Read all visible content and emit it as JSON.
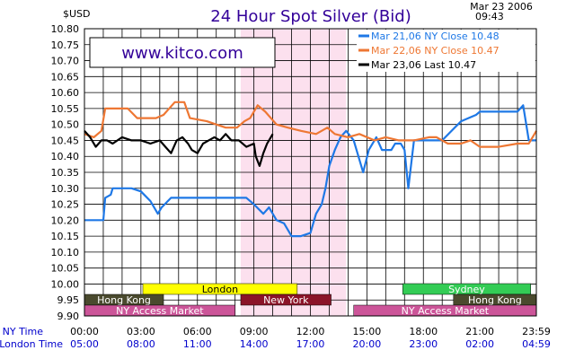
{
  "chart_data": {
    "type": "line",
    "title": "24 Hour Spot Silver (Bid)",
    "date": "Mar 23 2006",
    "time": "09:43",
    "ylabel": "$USD",
    "watermark": "www.kitco.com",
    "ylim": [
      9.9,
      10.8
    ],
    "y_ticks": [
      "10.80",
      "10.75",
      "10.70",
      "10.65",
      "10.60",
      "10.55",
      "10.50",
      "10.45",
      "10.40",
      "10.35",
      "10.30",
      "10.25",
      "10.20",
      "10.15",
      "10.10",
      "10.05",
      "10.00",
      "9.95",
      "9.90"
    ],
    "x_range_hours": [
      0,
      24
    ],
    "x_row_label_ny": "NY Time",
    "x_row_label_london": "London Time",
    "x_ticks": [
      {
        "h": 0,
        "ny": "00:00",
        "london": "05:00"
      },
      {
        "h": 3,
        "ny": "03:00",
        "london": "08:00"
      },
      {
        "h": 6,
        "ny": "06:00",
        "london": "11:00"
      },
      {
        "h": 9,
        "ny": "09:00",
        "london": "14:00"
      },
      {
        "h": 12,
        "ny": "12:00",
        "london": "17:00"
      },
      {
        "h": 15,
        "ny": "15:00",
        "london": "20:00"
      },
      {
        "h": 18,
        "ny": "18:00",
        "london": "23:00"
      },
      {
        "h": 21,
        "ny": "21:00",
        "london": "02:00"
      },
      {
        "h": 24,
        "ny": "23:59",
        "london": "04:59"
      }
    ],
    "highlight_hours": [
      8.3,
      13.9
    ],
    "series": [
      {
        "name": "Mar 21,06",
        "closing_label": "NY Close",
        "last_value": "10.48",
        "color": "#1e78e6",
        "points": [
          [
            0,
            10.2
          ],
          [
            1,
            10.2
          ],
          [
            1.1,
            10.27
          ],
          [
            1.4,
            10.28
          ],
          [
            1.5,
            10.3
          ],
          [
            2.5,
            10.3
          ],
          [
            3,
            10.29
          ],
          [
            3.5,
            10.26
          ],
          [
            3.9,
            10.22
          ],
          [
            4.1,
            10.24
          ],
          [
            4.6,
            10.27
          ],
          [
            5.5,
            10.27
          ],
          [
            6,
            10.27
          ],
          [
            7,
            10.27
          ],
          [
            8,
            10.27
          ],
          [
            8.6,
            10.27
          ],
          [
            9,
            10.25
          ],
          [
            9.5,
            10.22
          ],
          [
            9.8,
            10.24
          ],
          [
            10.2,
            10.2
          ],
          [
            10.6,
            10.19
          ],
          [
            11,
            10.15
          ],
          [
            11.5,
            10.15
          ],
          [
            12,
            10.16
          ],
          [
            12.3,
            10.22
          ],
          [
            12.6,
            10.25
          ],
          [
            12.8,
            10.3
          ],
          [
            13,
            10.37
          ],
          [
            13.3,
            10.42
          ],
          [
            13.6,
            10.46
          ],
          [
            13.9,
            10.48
          ],
          [
            14.3,
            10.45
          ],
          [
            14.8,
            10.35
          ],
          [
            15.1,
            10.42
          ],
          [
            15.5,
            10.46
          ],
          [
            15.8,
            10.42
          ],
          [
            16.3,
            10.42
          ],
          [
            16.5,
            10.44
          ],
          [
            16.8,
            10.44
          ],
          [
            17.0,
            10.42
          ],
          [
            17.2,
            10.3
          ],
          [
            17.5,
            10.45
          ],
          [
            18,
            10.45
          ],
          [
            19,
            10.45
          ],
          [
            20,
            10.51
          ],
          [
            20.8,
            10.53
          ],
          [
            21,
            10.54
          ],
          [
            22,
            10.54
          ],
          [
            23,
            10.54
          ],
          [
            23.3,
            10.56
          ],
          [
            23.6,
            10.45
          ],
          [
            24,
            10.45
          ]
        ]
      },
      {
        "name": "Mar 22,06",
        "closing_label": "NY Close",
        "last_value": "10.47",
        "color": "#ee7733",
        "points": [
          [
            0,
            10.47
          ],
          [
            0.5,
            10.46
          ],
          [
            0.9,
            10.48
          ],
          [
            1.1,
            10.55
          ],
          [
            2.3,
            10.55
          ],
          [
            2.8,
            10.52
          ],
          [
            3.8,
            10.52
          ],
          [
            4.2,
            10.53
          ],
          [
            4.8,
            10.57
          ],
          [
            5.3,
            10.57
          ],
          [
            5.6,
            10.52
          ],
          [
            6.5,
            10.51
          ],
          [
            7,
            10.5
          ],
          [
            7.5,
            10.49
          ],
          [
            8.1,
            10.49
          ],
          [
            8.5,
            10.51
          ],
          [
            8.8,
            10.52
          ],
          [
            9.2,
            10.56
          ],
          [
            9.6,
            10.54
          ],
          [
            10.2,
            10.5
          ],
          [
            10.8,
            10.49
          ],
          [
            11.5,
            10.48
          ],
          [
            12.3,
            10.47
          ],
          [
            12.9,
            10.49
          ],
          [
            13.3,
            10.47
          ],
          [
            14,
            10.46
          ],
          [
            14.6,
            10.47
          ],
          [
            15.4,
            10.45
          ],
          [
            16,
            10.46
          ],
          [
            16.7,
            10.45
          ],
          [
            17.5,
            10.45
          ],
          [
            18.3,
            10.46
          ],
          [
            18.7,
            10.46
          ],
          [
            19.3,
            10.44
          ],
          [
            20,
            10.44
          ],
          [
            20.5,
            10.45
          ],
          [
            21,
            10.43
          ],
          [
            22,
            10.43
          ],
          [
            23,
            10.44
          ],
          [
            23.6,
            10.44
          ],
          [
            24,
            10.48
          ]
        ]
      },
      {
        "name": "Mar 23,06",
        "closing_label": "Last",
        "last_value": "10.47",
        "color": "#000000",
        "points": [
          [
            0,
            10.48
          ],
          [
            0.3,
            10.46
          ],
          [
            0.6,
            10.43
          ],
          [
            0.9,
            10.45
          ],
          [
            1.2,
            10.45
          ],
          [
            1.5,
            10.44
          ],
          [
            2.0,
            10.46
          ],
          [
            2.5,
            10.45
          ],
          [
            3.0,
            10.45
          ],
          [
            3.5,
            10.44
          ],
          [
            4.0,
            10.45
          ],
          [
            4.3,
            10.43
          ],
          [
            4.6,
            10.41
          ],
          [
            4.9,
            10.45
          ],
          [
            5.2,
            10.46
          ],
          [
            5.5,
            10.44
          ],
          [
            5.7,
            10.42
          ],
          [
            6.0,
            10.41
          ],
          [
            6.3,
            10.44
          ],
          [
            6.6,
            10.45
          ],
          [
            6.9,
            10.46
          ],
          [
            7.2,
            10.45
          ],
          [
            7.5,
            10.47
          ],
          [
            7.8,
            10.45
          ],
          [
            8.2,
            10.45
          ],
          [
            8.6,
            10.43
          ],
          [
            9.0,
            10.44
          ],
          [
            9.1,
            10.4
          ],
          [
            9.3,
            10.37
          ],
          [
            9.5,
            10.41
          ],
          [
            9.7,
            10.44
          ],
          [
            9.9,
            10.46
          ],
          [
            10.0,
            10.47
          ]
        ]
      }
    ],
    "market_rows": [
      {
        "row": "upper",
        "markets": [
          {
            "name": "London",
            "start_h": 3.1,
            "end_h": 11.3,
            "color": "#ffff00",
            "text_color": "#000000"
          },
          {
            "name": "Sydney",
            "start_h": 16.9,
            "end_h": 23.7,
            "color": "#33cc55",
            "text_color": "#ffffff"
          }
        ]
      },
      {
        "row": "middle",
        "markets": [
          {
            "name": "Hong Kong",
            "start_h": 0,
            "end_h": 4.2,
            "color": "#4a4a2e",
            "text_color": "#ffffff"
          },
          {
            "name": "New York",
            "start_h": 8.3,
            "end_h": 13.1,
            "color": "#8b1428",
            "text_color": "#ffffff"
          },
          {
            "name": "Hong Kong",
            "start_h": 19.6,
            "end_h": 24,
            "color": "#4a4a2e",
            "text_color": "#ffffff"
          }
        ]
      },
      {
        "row": "lower",
        "markets": [
          {
            "name": "NY Access Market",
            "start_h": 0,
            "end_h": 8.0,
            "color": "#cc5599",
            "text_color": "#ffffff"
          },
          {
            "name": "NY Access Market",
            "start_h": 14.3,
            "end_h": 24,
            "color": "#cc5599",
            "text_color": "#ffffff"
          }
        ]
      }
    ]
  }
}
